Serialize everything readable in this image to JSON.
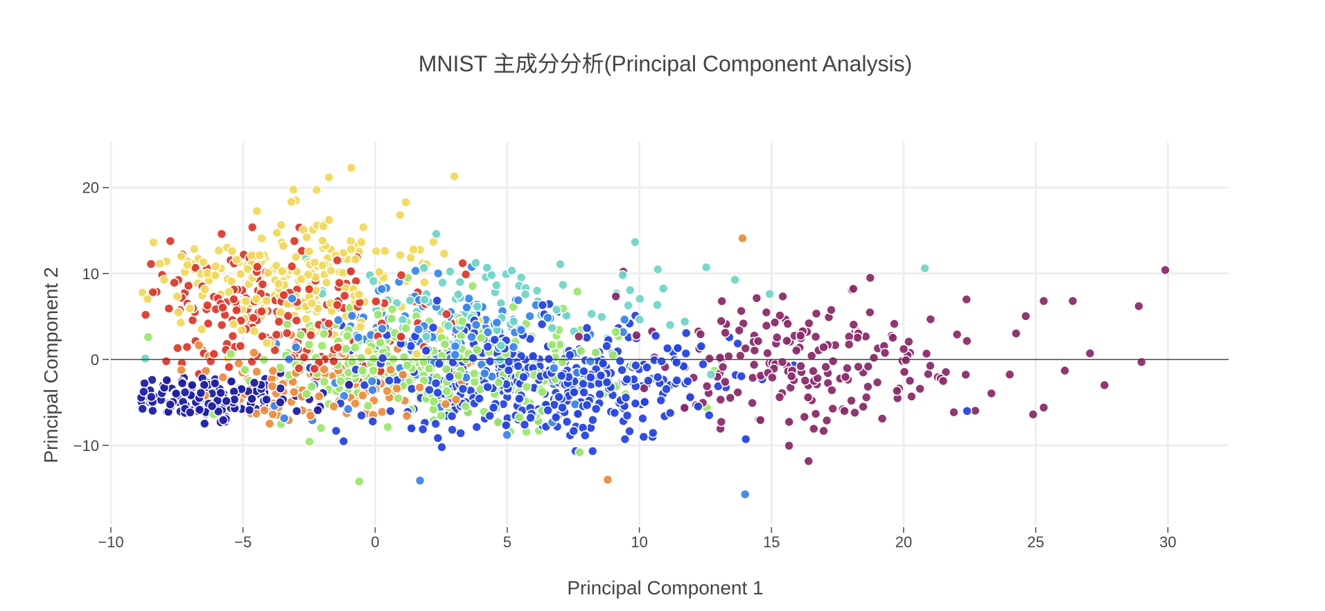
{
  "chart_data": {
    "type": "scatter",
    "title": "MNIST 主成分分析(Principal Component Analysis)",
    "xlabel": "Principal Component 1",
    "ylabel": "Principal Component 2",
    "xlim": [
      -10,
      32.3
    ],
    "ylim": [
      -19.2,
      25.3
    ],
    "x_ticks": [
      -10,
      -5,
      0,
      5,
      10,
      15,
      20,
      25,
      30
    ],
    "y_ticks": [
      -10,
      0,
      10,
      20
    ],
    "grid": true,
    "zero_line": true,
    "legend": "none",
    "marker": {
      "style": "circle",
      "outline": "#ffffff"
    },
    "colorscale": [
      "#1f1fa8",
      "#2545e6",
      "#3a86f0",
      "#6fd6c8",
      "#9be86a",
      "#f2d95a",
      "#f08c3c",
      "#e0392a",
      "#8c2b6a"
    ],
    "clusters": [
      {
        "label_index": 0,
        "color": "#1f1fa8",
        "center": [
          -6.5,
          -4.5
        ],
        "spread": [
          2.5,
          1.6
        ],
        "count": 160
      },
      {
        "label_index": 1,
        "color": "#2545e6",
        "center": [
          6.0,
          -2.5
        ],
        "spread": [
          4.5,
          4.5
        ],
        "count": 420
      },
      {
        "label_index": 2,
        "color": "#3a86f0",
        "center": [
          3.0,
          2.0
        ],
        "spread": [
          4.0,
          5.0
        ],
        "count": 150
      },
      {
        "label_index": 3,
        "color": "#6fd6c8",
        "center": [
          4.0,
          6.0
        ],
        "spread": [
          5.0,
          4.5
        ],
        "count": 90
      },
      {
        "label_index": 4,
        "color": "#9be86a",
        "center": [
          2.0,
          -1.0
        ],
        "spread": [
          4.5,
          4.5
        ],
        "count": 320
      },
      {
        "label_index": 5,
        "color": "#f2d95a",
        "center": [
          -3.0,
          9.5
        ],
        "spread": [
          3.5,
          5.5
        ],
        "count": 230
      },
      {
        "label_index": 6,
        "color": "#f08c3c",
        "center": [
          -2.0,
          -3.5
        ],
        "spread": [
          4.0,
          3.5
        ],
        "count": 100
      },
      {
        "label_index": 7,
        "color": "#e0392a",
        "center": [
          -4.0,
          5.0
        ],
        "spread": [
          4.0,
          5.0
        ],
        "count": 200
      },
      {
        "label_index": 8,
        "color": "#8c2b6a",
        "center": [
          16.5,
          0.0
        ],
        "spread": [
          4.5,
          5.5
        ],
        "count": 190
      }
    ],
    "notable_points": [
      {
        "x": 29.9,
        "y": 10.4,
        "color": "#8c2b6a"
      },
      {
        "x": 29.0,
        "y": -0.3,
        "color": "#8c2b6a"
      },
      {
        "x": 28.9,
        "y": 6.2,
        "color": "#8c2b6a"
      },
      {
        "x": 26.4,
        "y": 6.8,
        "color": "#8c2b6a"
      },
      {
        "x": 27.6,
        "y": -3.0,
        "color": "#8c2b6a"
      },
      {
        "x": 25.3,
        "y": 6.8,
        "color": "#8c2b6a"
      },
      {
        "x": 25.3,
        "y": -5.6,
        "color": "#8c2b6a"
      },
      {
        "x": 24.9,
        "y": -6.4,
        "color": "#8c2b6a"
      },
      {
        "x": 26.1,
        "y": -1.3,
        "color": "#8c2b6a"
      },
      {
        "x": 22.4,
        "y": -6.0,
        "color": "#2545e6"
      },
      {
        "x": 14.0,
        "y": -15.7,
        "color": "#3a86f0"
      },
      {
        "x": -0.9,
        "y": 22.3,
        "color": "#f2d95a"
      },
      {
        "x": 3.0,
        "y": 21.3,
        "color": "#f2d95a"
      },
      {
        "x": 13.9,
        "y": 14.1,
        "color": "#f08c3c"
      },
      {
        "x": 20.8,
        "y": 10.6,
        "color": "#6fd6c8"
      },
      {
        "x": 8.8,
        "y": -14.0,
        "color": "#f08c3c"
      },
      {
        "x": -8.7,
        "y": 0.1,
        "color": "#6fd6c8"
      },
      {
        "x": 1.7,
        "y": -14.1,
        "color": "#3a86f0"
      },
      {
        "x": -0.6,
        "y": -14.2,
        "color": "#9be86a"
      }
    ]
  }
}
